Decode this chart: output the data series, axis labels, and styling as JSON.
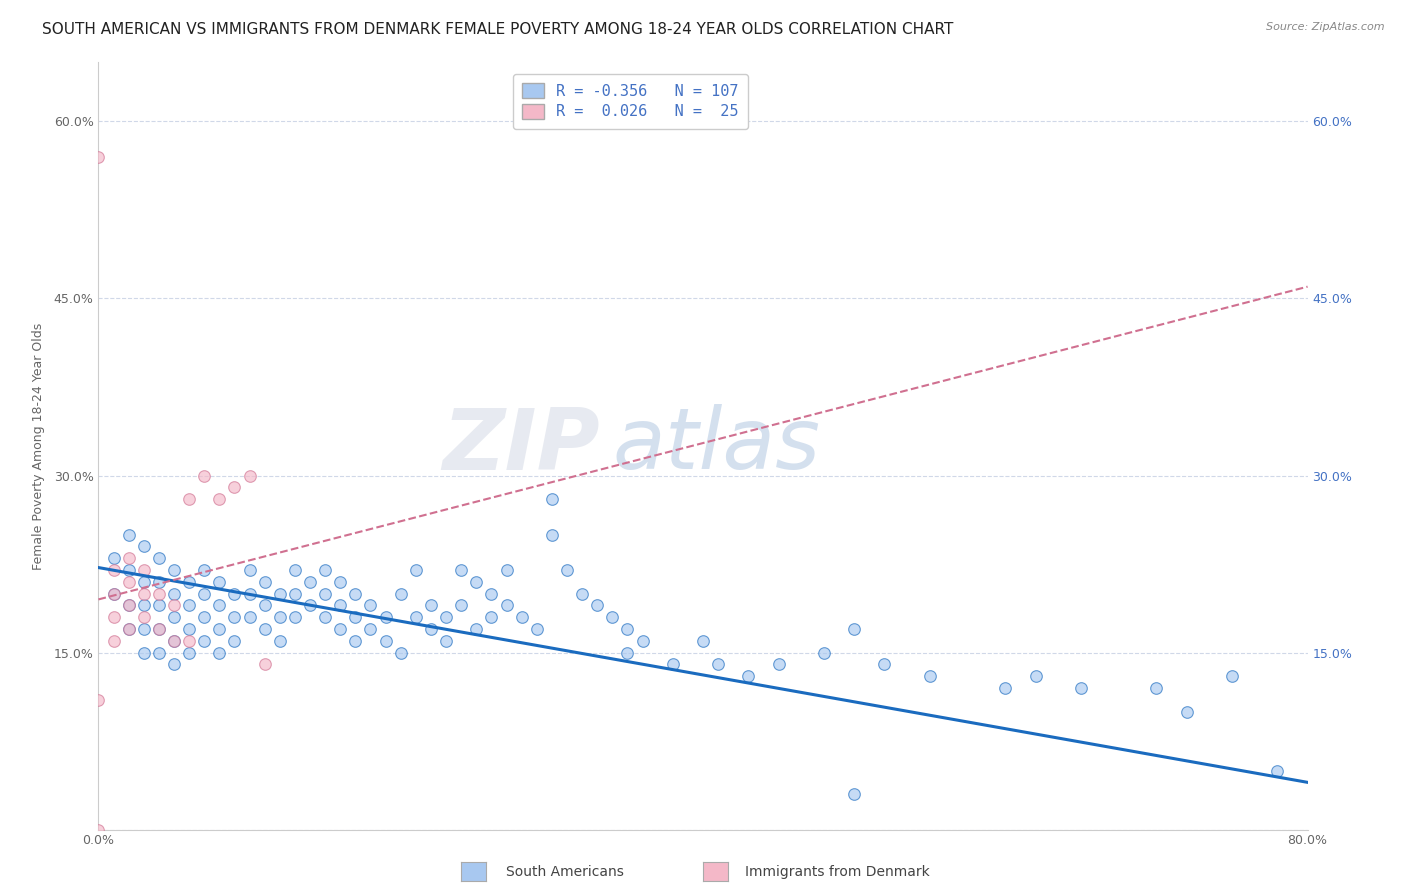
{
  "title": "SOUTH AMERICAN VS IMMIGRANTS FROM DENMARK FEMALE POVERTY AMONG 18-24 YEAR OLDS CORRELATION CHART",
  "source": "Source: ZipAtlas.com",
  "ylabel": "Female Poverty Among 18-24 Year Olds",
  "xlim": [
    0.0,
    0.8
  ],
  "ylim": [
    0.0,
    0.65
  ],
  "xticks": [
    0.0,
    0.1,
    0.2,
    0.3,
    0.4,
    0.5,
    0.6,
    0.7,
    0.8
  ],
  "xticklabels": [
    "0.0%",
    "",
    "",
    "",
    "",
    "",
    "",
    "",
    "80.0%"
  ],
  "ytick_positions": [
    0.0,
    0.15,
    0.3,
    0.45,
    0.6
  ],
  "ytick_labels": [
    "",
    "15.0%",
    "30.0%",
    "45.0%",
    "60.0%"
  ],
  "right_ytick_positions": [
    0.15,
    0.3,
    0.45,
    0.6
  ],
  "right_ytick_labels": [
    "15.0%",
    "30.0%",
    "45.0%",
    "60.0%"
  ],
  "blue_R": "-0.356",
  "blue_N": "107",
  "pink_R": "0.026",
  "pink_N": "25",
  "blue_color": "#a8c8f0",
  "pink_color": "#f4b8c8",
  "blue_line_color": "#1a6bbf",
  "pink_line_color": "#d07090",
  "legend_label_blue": "South Americans",
  "legend_label_pink": "Immigrants from Denmark",
  "watermark_zip": "ZIP",
  "watermark_atlas": "atlas",
  "blue_scatter_x": [
    0.01,
    0.01,
    0.02,
    0.02,
    0.02,
    0.02,
    0.03,
    0.03,
    0.03,
    0.03,
    0.03,
    0.04,
    0.04,
    0.04,
    0.04,
    0.04,
    0.05,
    0.05,
    0.05,
    0.05,
    0.05,
    0.06,
    0.06,
    0.06,
    0.06,
    0.07,
    0.07,
    0.07,
    0.07,
    0.08,
    0.08,
    0.08,
    0.08,
    0.09,
    0.09,
    0.09,
    0.1,
    0.1,
    0.1,
    0.11,
    0.11,
    0.11,
    0.12,
    0.12,
    0.12,
    0.13,
    0.13,
    0.13,
    0.14,
    0.14,
    0.15,
    0.15,
    0.15,
    0.16,
    0.16,
    0.16,
    0.17,
    0.17,
    0.17,
    0.18,
    0.18,
    0.19,
    0.19,
    0.2,
    0.2,
    0.21,
    0.21,
    0.22,
    0.22,
    0.23,
    0.23,
    0.24,
    0.24,
    0.25,
    0.25,
    0.26,
    0.26,
    0.27,
    0.27,
    0.28,
    0.29,
    0.3,
    0.3,
    0.31,
    0.32,
    0.33,
    0.34,
    0.35,
    0.35,
    0.36,
    0.38,
    0.4,
    0.41,
    0.43,
    0.45,
    0.48,
    0.5,
    0.52,
    0.55,
    0.6,
    0.62,
    0.65,
    0.7,
    0.72,
    0.75,
    0.78,
    0.5
  ],
  "blue_scatter_y": [
    0.23,
    0.2,
    0.25,
    0.22,
    0.19,
    0.17,
    0.24,
    0.21,
    0.19,
    0.17,
    0.15,
    0.23,
    0.21,
    0.19,
    0.17,
    0.15,
    0.22,
    0.2,
    0.18,
    0.16,
    0.14,
    0.21,
    0.19,
    0.17,
    0.15,
    0.22,
    0.2,
    0.18,
    0.16,
    0.21,
    0.19,
    0.17,
    0.15,
    0.2,
    0.18,
    0.16,
    0.22,
    0.2,
    0.18,
    0.21,
    0.19,
    0.17,
    0.2,
    0.18,
    0.16,
    0.22,
    0.2,
    0.18,
    0.21,
    0.19,
    0.22,
    0.2,
    0.18,
    0.21,
    0.19,
    0.17,
    0.2,
    0.18,
    0.16,
    0.19,
    0.17,
    0.18,
    0.16,
    0.2,
    0.15,
    0.22,
    0.18,
    0.19,
    0.17,
    0.18,
    0.16,
    0.22,
    0.19,
    0.21,
    0.17,
    0.2,
    0.18,
    0.22,
    0.19,
    0.18,
    0.17,
    0.28,
    0.25,
    0.22,
    0.2,
    0.19,
    0.18,
    0.17,
    0.15,
    0.16,
    0.14,
    0.16,
    0.14,
    0.13,
    0.14,
    0.15,
    0.17,
    0.14,
    0.13,
    0.12,
    0.13,
    0.12,
    0.12,
    0.1,
    0.13,
    0.05,
    0.03
  ],
  "pink_scatter_x": [
    0.0,
    0.0,
    0.0,
    0.01,
    0.01,
    0.01,
    0.01,
    0.02,
    0.02,
    0.02,
    0.02,
    0.03,
    0.03,
    0.03,
    0.04,
    0.04,
    0.05,
    0.05,
    0.06,
    0.06,
    0.07,
    0.08,
    0.09,
    0.1,
    0.11
  ],
  "pink_scatter_y": [
    0.57,
    0.11,
    0.0,
    0.22,
    0.2,
    0.18,
    0.16,
    0.23,
    0.21,
    0.19,
    0.17,
    0.22,
    0.2,
    0.18,
    0.2,
    0.17,
    0.19,
    0.16,
    0.28,
    0.16,
    0.3,
    0.28,
    0.29,
    0.3,
    0.14
  ],
  "blue_line_x": [
    0.0,
    0.8
  ],
  "blue_line_y": [
    0.222,
    0.04
  ],
  "pink_line_x": [
    0.0,
    0.8
  ],
  "pink_line_y": [
    0.195,
    0.46
  ],
  "grid_color": "#d0d8e8",
  "bg_color": "#ffffff",
  "title_fontsize": 11,
  "axis_label_fontsize": 9,
  "tick_fontsize": 9,
  "scatter_size": 70,
  "scatter_alpha": 0.65,
  "scatter_linewidth": 0.8
}
